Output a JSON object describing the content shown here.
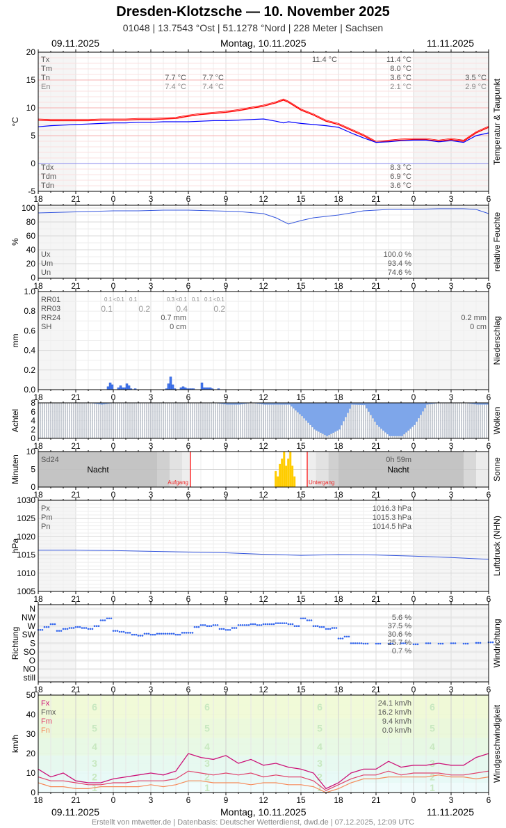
{
  "header": {
    "title": "Dresden-Klotzsche  —  10. November 2025",
    "subtitle": "01048  |  13.7543 °Ost  |  51.1278 °Nord  |  228 Meter  |  Sachsen",
    "date_left": "09.11.2025",
    "date_center": "Montag, 10.11.2025",
    "date_right": "11.11.2025"
  },
  "footer": "Erstellt von mtwetter.de | Datenbasis: Deutscher Wetterdienst, dwd.de | 07.12.2025, 12:09 UTC",
  "time_ticks": [
    "18",
    "21",
    "0",
    "3",
    "6",
    "9",
    "12",
    "15",
    "18",
    "21",
    "0",
    "3",
    "6"
  ],
  "colors": {
    "temp": "#ff0000",
    "dewpoint": "#0000ff",
    "humidity": "#3355dd",
    "precip": "#4477ee",
    "cloud_gap": "#7ea6ea",
    "sun": "#ffcc00",
    "pressure": "#3355dd",
    "winddir": "#3366ee",
    "fx": "#cc1177",
    "fm": "#e0406a",
    "fn": "#f58a5a",
    "sunline": "#ff0000"
  },
  "panels": {
    "temp": {
      "ylabel": "°C",
      "title": "Temperatur & Taupunkt",
      "yticks": [
        "20",
        "15",
        "10",
        "5",
        "0",
        "-5"
      ],
      "labels": {
        "tx": "Tx",
        "tm": "Tm",
        "tn": "Tn",
        "en": "En",
        "tdx": "Tdx",
        "tdm": "Tdm",
        "tdn": "Tdn"
      },
      "tx_peak": "11.4 °C",
      "tn_1": "7.7 °C",
      "en_1": "7.4 °C",
      "tn_2": "7.7 °C",
      "en_2": "7.4 °C",
      "tx": "11.4 °C",
      "tm": "8.0 °C",
      "tn": "3.6 °C",
      "en": "2.1 °C",
      "tn_next": "3.5 °C",
      "en_next": "2.9 °C",
      "tdx": "8.3 °C",
      "tdm": "6.9 °C",
      "tdn": "3.6 °C"
    },
    "humidity": {
      "ylabel": "%",
      "title": "relative Feuchte",
      "yticks": [
        "100",
        "80",
        "60",
        "40",
        "20",
        "0"
      ],
      "labels": {
        "ux": "Ux",
        "um": "Um",
        "un": "Un"
      },
      "ux": "100.0 %",
      "um": "93.4 %",
      "un": "74.6 %"
    },
    "precip": {
      "ylabel": "mm",
      "title": "Niederschlag",
      "yticks": [
        "1.0",
        "0.8",
        "0.6",
        "0.4",
        "0.2",
        "0.0"
      ],
      "labels": {
        "rr01": "RR01",
        "rr03": "RR03",
        "rr24": "RR24",
        "sh": "SH"
      },
      "rr01": [
        "0.1",
        "<0.1",
        "0.1",
        "0.3",
        "<0.1",
        "0.1",
        "0.1",
        "<0.1"
      ],
      "rr03": [
        "0.1",
        "0.2",
        "0.4",
        "0.2"
      ],
      "rr24": "0.7 mm",
      "sh": "0 cm",
      "rr24_next": "0.2 mm",
      "sh_next": "0 cm"
    },
    "cloud": {
      "ylabel": "Achtel",
      "title": "Wolken",
      "yticks": [
        "8",
        "6",
        "4",
        "2",
        "0"
      ]
    },
    "sun": {
      "ylabel": "Minuten",
      "title": "Sonne",
      "yticks": [
        "10",
        "5",
        "0"
      ],
      "labels": {
        "sd24": "Sd24"
      },
      "sd24": "0h 59m",
      "night": "Nacht",
      "sunrise": "Aufgang",
      "sunset": "Untergang"
    },
    "pressure": {
      "ylabel": "hPa",
      "title": "Luftdruck (NHN)",
      "yticks": [
        "1030",
        "1025",
        "1020",
        "1015",
        "1010",
        "1005"
      ],
      "labels": {
        "px": "Px",
        "pm": "Pm",
        "pn": "Pn"
      },
      "px": "1016.3 hPa",
      "pm": "1015.3 hPa",
      "pn": "1014.5 hPa"
    },
    "winddir": {
      "ylabel": "Richtung",
      "title": "Windrichtung",
      "yticks": [
        "N",
        "NW",
        "W",
        "SW",
        "S",
        "SO",
        "O",
        "NO",
        "still"
      ],
      "shares": [
        "5.6 %",
        "37.5 %",
        "30.6 %",
        "25.7 %",
        "0.7 %"
      ]
    },
    "wind": {
      "ylabel": "km/h",
      "title": "Windgeschwindigkeit",
      "yticks": [
        "50",
        "40",
        "30",
        "20",
        "10",
        "0"
      ],
      "labels": {
        "fx": "Fx",
        "fmx": "Fmx",
        "fm": "Fm",
        "fn": "Fn"
      },
      "fx": "24.1 km/h",
      "fmx": "16.2 km/h",
      "fm": "9.4 km/h",
      "fn": "0.0 km/h",
      "beaufort": [
        "1",
        "2",
        "3",
        "4",
        "5",
        "6"
      ]
    }
  },
  "chart_data": [
    {
      "type": "line",
      "name_hint": "temp",
      "x_unit": "hours from 09.11.2025 18:00",
      "xlim": [
        0,
        36
      ],
      "ylim": [
        -5,
        20
      ],
      "grid": true,
      "x": [
        0,
        1,
        2,
        3,
        4,
        5,
        6,
        7,
        8,
        9,
        10,
        11,
        12,
        13,
        14,
        15,
        16,
        17,
        18,
        19,
        19.6,
        20,
        21,
        22,
        23,
        24,
        25,
        26,
        27,
        28,
        29,
        30,
        31,
        32,
        33,
        34,
        35,
        36
      ],
      "series": [
        {
          "name": "T",
          "values": [
            7.8,
            7.7,
            7.7,
            7.7,
            7.7,
            7.8,
            7.8,
            7.8,
            7.9,
            7.9,
            8.0,
            8.1,
            8.5,
            8.8,
            9.0,
            9.2,
            9.5,
            9.9,
            10.3,
            10.9,
            11.4,
            11.0,
            9.6,
            8.7,
            7.6,
            7.0,
            6.0,
            5.0,
            3.8,
            4.0,
            4.2,
            4.3,
            4.3,
            4.0,
            4.3,
            4.0,
            5.5,
            6.5
          ]
        },
        {
          "name": "Td",
          "values": [
            6.6,
            6.8,
            6.9,
            7.0,
            7.1,
            7.2,
            7.3,
            7.3,
            7.4,
            7.4,
            7.5,
            7.5,
            7.5,
            7.6,
            7.7,
            7.7,
            7.8,
            7.9,
            8.0,
            7.6,
            7.3,
            7.5,
            7.2,
            7.0,
            6.8,
            6.5,
            5.5,
            4.6,
            3.8,
            3.9,
            4.1,
            4.2,
            4.2,
            3.9,
            4.1,
            3.8,
            5.0,
            5.5
          ]
        }
      ]
    },
    {
      "type": "line",
      "name_hint": "humidity",
      "xlim": [
        0,
        36
      ],
      "ylim": [
        0,
        100
      ],
      "x": [
        0,
        2,
        4,
        6,
        8,
        10,
        12,
        14,
        16,
        18,
        19,
        20,
        21,
        22,
        24,
        26,
        28,
        30,
        32,
        34,
        35,
        36
      ],
      "values": [
        93,
        94,
        95,
        96,
        96,
        97,
        97,
        96,
        95,
        92,
        86,
        77,
        82,
        86,
        90,
        96,
        98,
        98,
        99,
        99,
        98,
        92
      ]
    },
    {
      "type": "bar",
      "name_hint": "precip_10min",
      "ylim": [
        0,
        1.0
      ],
      "x": [
        5.5,
        5.67,
        5.83,
        6.33,
        6.5,
        6.67,
        6.83,
        7.0,
        7.17,
        7.33,
        7.67,
        10.17,
        10.33,
        10.5,
        10.67,
        10.83,
        11.33,
        11.5,
        11.67,
        11.83,
        12.0,
        12.17,
        12.33,
        13.0,
        13.17,
        13.33,
        13.5,
        13.67,
        13.83,
        14.33
      ],
      "values": [
        0.03,
        0.07,
        0.05,
        0.02,
        0.04,
        0.02,
        0.02,
        0.06,
        0.04,
        0.01,
        0.01,
        0.01,
        0.06,
        0.13,
        0.05,
        0.01,
        0.02,
        0.03,
        0.02,
        0.01,
        0.01,
        0.01,
        0.01,
        0.07,
        0.02,
        0.02,
        0.02,
        0.02,
        0.01,
        0.01
      ]
    },
    {
      "type": "bar",
      "name_hint": "cloud_octas_hourly",
      "ylim": [
        0,
        8
      ],
      "x": [
        0,
        1,
        2,
        3,
        4,
        5,
        6,
        7,
        8,
        9,
        10,
        11,
        12,
        13,
        14,
        15,
        16,
        17,
        18,
        19,
        20,
        21,
        22,
        23,
        24,
        25,
        26,
        27,
        28,
        29,
        30,
        31,
        32,
        33,
        34,
        35
      ],
      "values": [
        8,
        8,
        8,
        8,
        8,
        7.6,
        8,
        8,
        8,
        8,
        8,
        8,
        8,
        8,
        8,
        7.6,
        7.6,
        8,
        7.6,
        7.6,
        7.6,
        5,
        2,
        0.5,
        2,
        7.6,
        7.5,
        3,
        0.5,
        0.5,
        3,
        7.6,
        8,
        8,
        8,
        7.6
      ]
    },
    {
      "type": "bar",
      "name_hint": "sunshine_10min",
      "ylim": [
        0,
        10
      ],
      "x": [
        18.9,
        19.07,
        19.23,
        19.4,
        19.57,
        19.73,
        19.9,
        20.07,
        20.23,
        20.4
      ],
      "values": [
        4.5,
        3,
        6.5,
        8,
        10,
        6,
        8,
        10,
        6,
        3
      ],
      "sunrise_hour": 12.17,
      "sunset_hour": 21.5
    },
    {
      "type": "line",
      "name_hint": "pressure",
      "ylim": [
        1005,
        1030
      ],
      "x": [
        0,
        3,
        6,
        9,
        12,
        15,
        18,
        21,
        24,
        27,
        30,
        33,
        36
      ],
      "values": [
        1016.3,
        1016.3,
        1016.2,
        1016.0,
        1015.8,
        1015.6,
        1015.2,
        1014.9,
        1015.1,
        1015.0,
        1014.7,
        1014.3,
        1013.8
      ]
    },
    {
      "type": "scatter",
      "name_hint": "wind_direction_deg",
      "ylim": [
        0,
        360
      ],
      "x": [
        0,
        0.5,
        1,
        1.5,
        2,
        2.5,
        3,
        3.5,
        4,
        4.5,
        5,
        5.5,
        6,
        6.5,
        7,
        7.5,
        8,
        8.5,
        9,
        9.5,
        10,
        10.5,
        11,
        11.5,
        12,
        12.5,
        13,
        13.5,
        14,
        14.5,
        15,
        15.5,
        16,
        16.5,
        17,
        17.5,
        18,
        18.5,
        19,
        19.5,
        20,
        20.5,
        21,
        21.5,
        22,
        22.5,
        23,
        23.5,
        24,
        24.5,
        25,
        25.5,
        26,
        27,
        28,
        29,
        30,
        31,
        32,
        33,
        34,
        35,
        36
      ],
      "values": [
        250,
        265,
        280,
        245,
        255,
        260,
        265,
        260,
        255,
        270,
        300,
        310,
        245,
        240,
        235,
        225,
        220,
        230,
        225,
        230,
        230,
        230,
        225,
        235,
        235,
        265,
        275,
        270,
        275,
        255,
        250,
        260,
        275,
        275,
        280,
        275,
        280,
        280,
        285,
        285,
        280,
        270,
        310,
        300,
        270,
        265,
        255,
        260,
        205,
        215,
        180,
        180,
        178,
        178,
        178,
        180,
        175,
        180,
        178,
        180,
        178,
        182,
        185
      ]
    },
    {
      "type": "line",
      "name_hint": "wind_speed",
      "ylim": [
        0,
        50
      ],
      "x": [
        0,
        1,
        2,
        3,
        4,
        5,
        6,
        7,
        8,
        9,
        10,
        11,
        12,
        13,
        14,
        15,
        16,
        17,
        18,
        19,
        20,
        21,
        22,
        23,
        24,
        25,
        26,
        27,
        28,
        29,
        30,
        31,
        32,
        33,
        34,
        35,
        36
      ],
      "series": [
        {
          "name": "Fx",
          "values": [
            12,
            8,
            10,
            6,
            5,
            5,
            7,
            8,
            9,
            10,
            9,
            11,
            20,
            18,
            17,
            19,
            15,
            17,
            14,
            15,
            13,
            12,
            10,
            2,
            5,
            10,
            12,
            12,
            16,
            13,
            14,
            14,
            15,
            14,
            14,
            18,
            20
          ]
        },
        {
          "name": "Fm",
          "values": [
            8,
            6,
            6,
            5,
            4,
            4,
            5,
            5,
            6,
            6,
            6,
            7,
            11,
            10,
            9,
            10,
            9,
            10,
            8,
            9,
            8,
            8,
            6,
            1,
            4,
            7,
            9,
            9,
            11,
            9,
            10,
            10,
            10,
            9,
            9,
            10,
            11
          ]
        },
        {
          "name": "Fn",
          "values": [
            5,
            3,
            3,
            2,
            2,
            3,
            3,
            3,
            3,
            4,
            3,
            4,
            6,
            6,
            5,
            5,
            5,
            4,
            5,
            5,
            4,
            4,
            3,
            0,
            2,
            5,
            7,
            7,
            8,
            8,
            8,
            8,
            9,
            8,
            8,
            7,
            8
          ]
        }
      ]
    }
  ]
}
